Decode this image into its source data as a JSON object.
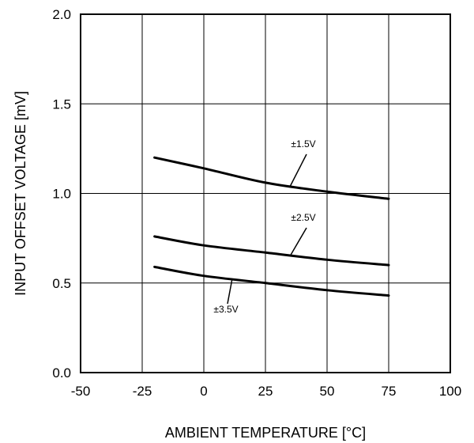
{
  "chart_data": {
    "type": "line",
    "title": "",
    "xlabel": "AMBIENT TEMPERATURE [°C]",
    "ylabel": "INPUT OFFSET VOLTAGE [mV]",
    "xlim": [
      -50,
      100
    ],
    "ylim": [
      0.0,
      2.0
    ],
    "grid": true,
    "x_ticks": [
      -50,
      -25,
      0,
      25,
      50,
      75,
      100
    ],
    "x_tick_labels": [
      "-50",
      "-25",
      "0",
      "25",
      "50",
      "75",
      "100"
    ],
    "y_ticks": [
      0.0,
      0.5,
      1.0,
      1.5,
      2.0
    ],
    "y_tick_labels": [
      "0.0",
      "0.5",
      "1.0",
      "1.5",
      "2.0"
    ],
    "series": [
      {
        "name": "±1.5V",
        "x": [
          -20,
          0,
          25,
          50,
          75
        ],
        "values": [
          1.2,
          1.14,
          1.06,
          1.01,
          0.97
        ]
      },
      {
        "name": "±2.5V",
        "x": [
          -20,
          0,
          25,
          50,
          75
        ],
        "values": [
          0.76,
          0.71,
          0.67,
          0.63,
          0.6
        ]
      },
      {
        "name": "±3.5V",
        "x": [
          -20,
          0,
          25,
          50,
          75
        ],
        "values": [
          0.59,
          0.54,
          0.5,
          0.46,
          0.43
        ]
      }
    ]
  }
}
